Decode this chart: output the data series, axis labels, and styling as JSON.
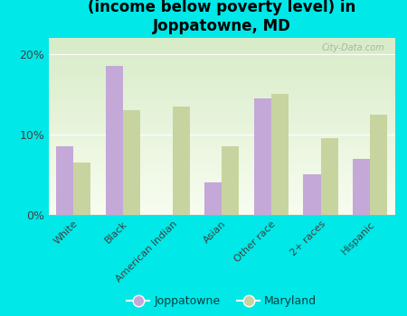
{
  "title": "Breakdown of poor residents within races\n(income below poverty level) in\nJoppatowne, MD",
  "categories": [
    "White",
    "Black",
    "American Indian",
    "Asian",
    "Other race",
    "2+ races",
    "Hispanic"
  ],
  "joppatowne": [
    8.5,
    18.5,
    0.0,
    4.0,
    14.5,
    5.0,
    7.0
  ],
  "maryland": [
    6.5,
    13.0,
    13.5,
    8.5,
    15.0,
    9.5,
    12.5
  ],
  "joppatowne_color": "#c4a8d8",
  "maryland_color": "#c8d4a0",
  "background_color": "#00e8e8",
  "plot_bg_top": "#d8ecc8",
  "plot_bg_bottom": "#f8fdf0",
  "yticks": [
    0,
    10,
    20
  ],
  "ylim": [
    0,
    22
  ],
  "watermark": "City-Data.com",
  "title_fontsize": 12,
  "bar_width": 0.35,
  "legend_joppatowne": "Joppatowne",
  "legend_maryland": "Maryland"
}
